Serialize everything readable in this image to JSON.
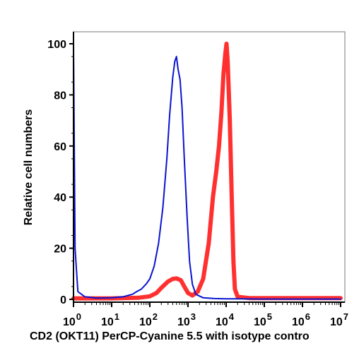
{
  "chart_data": {
    "type": "line",
    "title": "",
    "xlabel": "CD2 (OKT11) PerCP-Cyanine 5.5 with isotype contro",
    "ylabel": "Relative cell numbers",
    "x_scale": "log",
    "xlim": [
      1,
      10000000
    ],
    "ylim": [
      0,
      100
    ],
    "x_ticks": [
      {
        "base": "10",
        "exp": "0",
        "value": 1
      },
      {
        "base": "10",
        "exp": "1",
        "value": 10
      },
      {
        "base": "10",
        "exp": "2",
        "value": 100
      },
      {
        "base": "10",
        "exp": "3",
        "value": 1000
      },
      {
        "base": "10",
        "exp": "4",
        "value": 10000
      },
      {
        "base": "10",
        "exp": "5",
        "value": 100000
      },
      {
        "base": "10",
        "exp": "6",
        "value": 1000000
      },
      {
        "base": "10",
        "exp": "7",
        "value": 10000000
      }
    ],
    "y_ticks": [
      0,
      20,
      40,
      60,
      80,
      100
    ],
    "grid": false,
    "series": [
      {
        "color": "#0a14d0",
        "points": [
          [
            1,
            100
          ],
          [
            1.05,
            60
          ],
          [
            1.1,
            20
          ],
          [
            1.3,
            3
          ],
          [
            2,
            1
          ],
          [
            4,
            0.5
          ],
          [
            10,
            0.6
          ],
          [
            20,
            1
          ],
          [
            35,
            2
          ],
          [
            45,
            3
          ],
          [
            60,
            4
          ],
          [
            80,
            6
          ],
          [
            100,
            8
          ],
          [
            130,
            13
          ],
          [
            170,
            22
          ],
          [
            220,
            36
          ],
          [
            280,
            55
          ],
          [
            330,
            72
          ],
          [
            400,
            87
          ],
          [
            450,
            93
          ],
          [
            500,
            95
          ],
          [
            550,
            90
          ],
          [
            620,
            86
          ],
          [
            700,
            75
          ],
          [
            800,
            55
          ],
          [
            950,
            32
          ],
          [
            1100,
            15
          ],
          [
            1300,
            6
          ],
          [
            1600,
            2
          ],
          [
            2500,
            0.6
          ],
          [
            5000,
            0.3
          ],
          [
            10000,
            0.2
          ],
          [
            20000,
            0.2
          ],
          [
            100000,
            0.1
          ],
          [
            10000000,
            0.1
          ]
        ]
      },
      {
        "color": "#ff3030",
        "points": [
          [
            1,
            0.4
          ],
          [
            10,
            0.4
          ],
          [
            50,
            0.6
          ],
          [
            100,
            1.2
          ],
          [
            150,
            2.5
          ],
          [
            200,
            4.5
          ],
          [
            300,
            7
          ],
          [
            400,
            8
          ],
          [
            500,
            8.2
          ],
          [
            650,
            7.5
          ],
          [
            800,
            5
          ],
          [
            1000,
            2.5
          ],
          [
            1300,
            1.5
          ],
          [
            1800,
            3
          ],
          [
            2500,
            8
          ],
          [
            3500,
            22
          ],
          [
            4500,
            40
          ],
          [
            5500,
            50
          ],
          [
            6500,
            60
          ],
          [
            7500,
            73
          ],
          [
            8500,
            88
          ],
          [
            9500,
            96
          ],
          [
            10200,
            100
          ],
          [
            11000,
            93
          ],
          [
            12500,
            70
          ],
          [
            14000,
            40
          ],
          [
            15500,
            15
          ],
          [
            17000,
            4
          ],
          [
            20000,
            1
          ],
          [
            40000,
            0.5
          ],
          [
            100000,
            0.5
          ],
          [
            10000000,
            0.5
          ]
        ]
      }
    ]
  }
}
